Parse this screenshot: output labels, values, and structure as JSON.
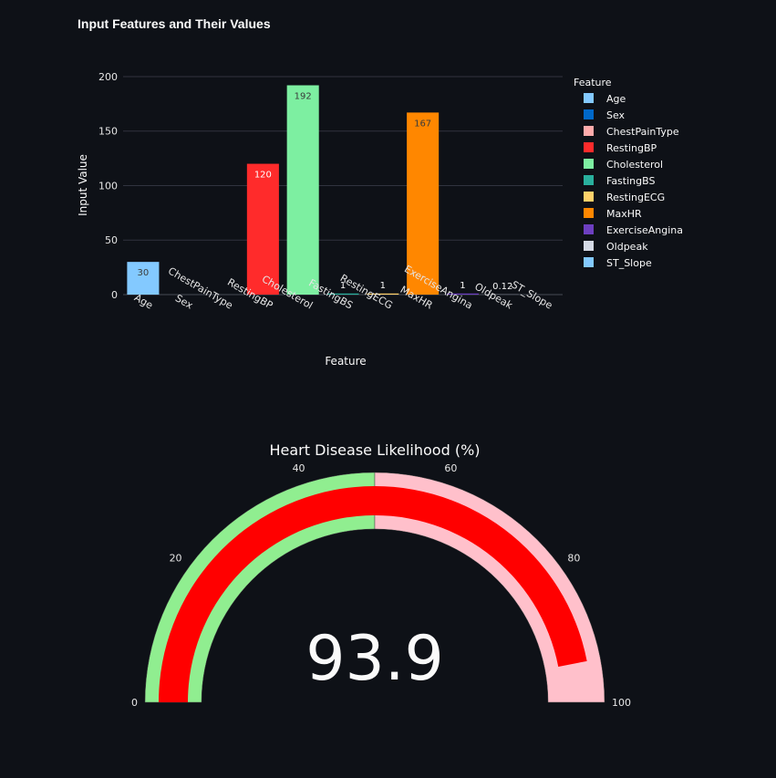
{
  "chart_data": [
    {
      "type": "bar",
      "title": "Input Features and Their Values",
      "xlabel": "Feature",
      "ylabel": "Input Value",
      "ylim": [
        0,
        210
      ],
      "yticks": [
        0,
        50,
        100,
        150,
        200
      ],
      "grid": true,
      "legend": {
        "title": "Feature",
        "placement": "right"
      },
      "categories": [
        "Age",
        "Sex",
        "ChestPainType",
        "RestingBP",
        "Cholesterol",
        "FastingBS",
        "RestingECG",
        "MaxHR",
        "ExerciseAngina",
        "Oldpeak",
        "ST_Slope"
      ],
      "values": [
        30,
        0,
        0,
        120,
        192,
        1,
        1,
        167,
        1,
        0.12,
        0
      ],
      "data_labels": [
        "30",
        "",
        "",
        "120",
        "192",
        "1",
        "1",
        "167",
        "1",
        "0.12",
        ""
      ],
      "colors": [
        "#83c9ff",
        "#0068c9",
        "#ffabab",
        "#ff2b2b",
        "#7defa1",
        "#29b09d",
        "#ffd16a",
        "#ff8700",
        "#6d3fc0",
        "#d5dae5",
        "#83c9ff"
      ],
      "label_inside": [
        true,
        false,
        false,
        true,
        true,
        false,
        false,
        true,
        false,
        false,
        false
      ],
      "label_dark": [
        true,
        false,
        false,
        false,
        true,
        false,
        false,
        true,
        false,
        false,
        false
      ]
    },
    {
      "type": "gauge",
      "title": "Heart Disease Likelihood (%)",
      "value": 93.9,
      "value_label": "93.9",
      "range": [
        0,
        100
      ],
      "ticks": [
        "0",
        "20",
        "40",
        "60",
        "80",
        "100"
      ],
      "tick_values": [
        0,
        20,
        40,
        60,
        80,
        100
      ],
      "steps": [
        {
          "range": [
            0,
            50
          ],
          "color": "#90ee90"
        },
        {
          "range": [
            50,
            100
          ],
          "color": "#ffc0cb"
        }
      ],
      "bar_color": "#ff0000"
    }
  ],
  "colors": {
    "background": "#0e1117",
    "text": "#fafafa",
    "grid": "#31333f",
    "tick_text": "#e6e6e6"
  }
}
